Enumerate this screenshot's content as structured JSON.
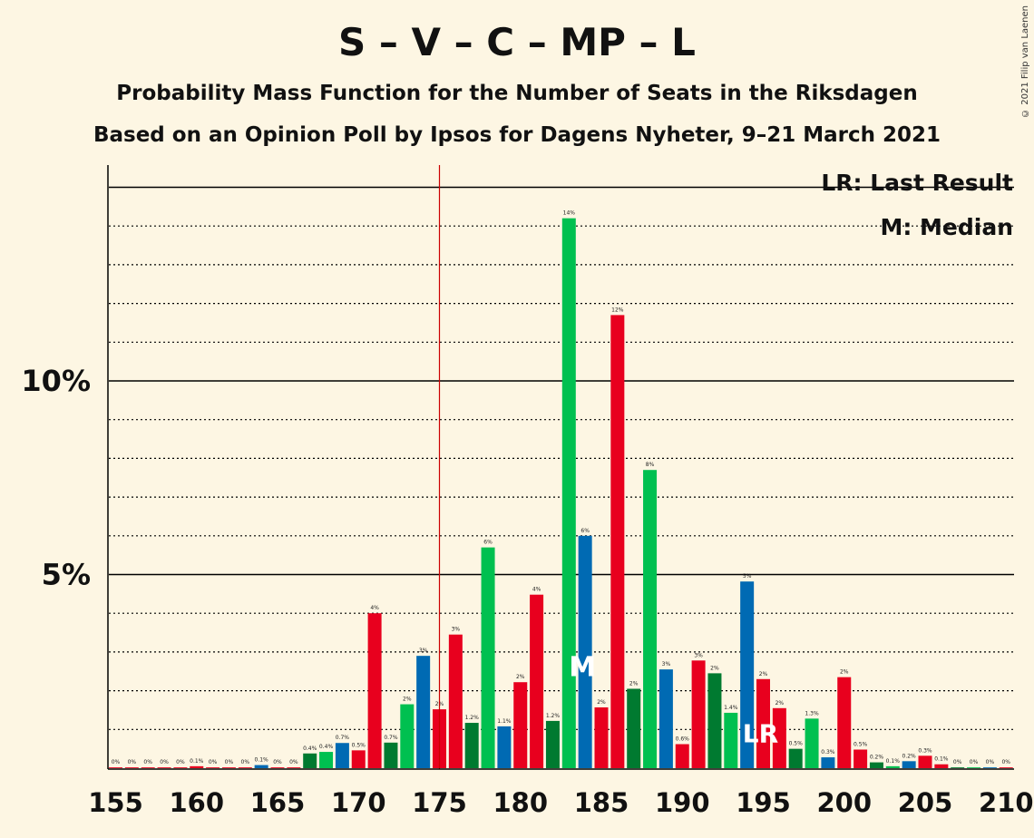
{
  "title": "S – V – C – MP – L",
  "subtitle": "Probability Mass Function for the Number of Seats in the Riksdagen",
  "subtitle2": "Based on an Opinion Poll by Ipsos for Dagens Nyheter, 9–21 March 2021",
  "copyright": "© 2021 Filip van Laenen",
  "legend": {
    "last_result": "LR: Last Result",
    "median": "M: Median"
  },
  "markers": {
    "median_label": "M",
    "last_result_label": "LR"
  },
  "colors": {
    "red": "#e8001e",
    "green": "#00c050",
    "darkgreen": "#007a30",
    "blue": "#006ab3",
    "majority_line": "#cc0000"
  },
  "chart_data": {
    "type": "bar",
    "xlim": [
      155,
      210
    ],
    "ylim": [
      0,
      15.5
    ],
    "x_ticks": [
      "155",
      "160",
      "165",
      "170",
      "175",
      "180",
      "185",
      "190",
      "195",
      "200",
      "205",
      "210"
    ],
    "y_ticks": [
      "5%",
      "10%"
    ],
    "majority_line_x": 175,
    "median_seat": 184,
    "last_result_seat": 195,
    "bars": [
      {
        "x": 155,
        "v": 0.02,
        "label": "0%",
        "c": "red"
      },
      {
        "x": 156,
        "v": 0.02,
        "label": "0%",
        "c": "red"
      },
      {
        "x": 157,
        "v": 0.02,
        "label": "0%",
        "c": "red"
      },
      {
        "x": 158,
        "v": 0.02,
        "label": "0%",
        "c": "red"
      },
      {
        "x": 159,
        "v": 0.02,
        "label": "0%",
        "c": "red"
      },
      {
        "x": 160,
        "v": 0.05,
        "label": "0.1%",
        "c": "red"
      },
      {
        "x": 161,
        "v": 0.02,
        "label": "0%",
        "c": "red"
      },
      {
        "x": 162,
        "v": 0.02,
        "label": "0%",
        "c": "red"
      },
      {
        "x": 163,
        "v": 0.02,
        "label": "0%",
        "c": "red"
      },
      {
        "x": 164,
        "v": 0.08,
        "label": "0.1%",
        "c": "blue"
      },
      {
        "x": 165,
        "v": 0.02,
        "label": "0%",
        "c": "red"
      },
      {
        "x": 166,
        "v": 0.02,
        "label": "0%",
        "c": "red"
      },
      {
        "x": 167,
        "v": 0.38,
        "label": "0.4%",
        "c": "darkgreen"
      },
      {
        "x": 168,
        "v": 0.42,
        "label": "0.4%",
        "c": "green"
      },
      {
        "x": 169,
        "v": 0.65,
        "label": "0.7%",
        "c": "blue"
      },
      {
        "x": 170,
        "v": 0.46,
        "label": "0.5%",
        "c": "red"
      },
      {
        "x": 171,
        "v": 4.0,
        "label": "4%",
        "c": "red"
      },
      {
        "x": 172,
        "v": 0.66,
        "label": "0.7%",
        "c": "darkgreen"
      },
      {
        "x": 173,
        "v": 1.65,
        "label": "2%",
        "c": "green"
      },
      {
        "x": 174,
        "v": 2.9,
        "label": "3%",
        "c": "blue"
      },
      {
        "x": 175,
        "v": 1.52,
        "label": "2%",
        "c": "red"
      },
      {
        "x": 176,
        "v": 3.45,
        "label": "3%",
        "c": "red"
      },
      {
        "x": 177,
        "v": 1.17,
        "label": "1.2%",
        "c": "darkgreen"
      },
      {
        "x": 178,
        "v": 5.7,
        "label": "6%",
        "c": "green"
      },
      {
        "x": 179,
        "v": 1.08,
        "label": "1.1%",
        "c": "blue"
      },
      {
        "x": 180,
        "v": 2.22,
        "label": "2%",
        "c": "red"
      },
      {
        "x": 181,
        "v": 4.48,
        "label": "4%",
        "c": "red"
      },
      {
        "x": 182,
        "v": 1.22,
        "label": "1.2%",
        "c": "darkgreen"
      },
      {
        "x": 183,
        "v": 14.2,
        "label": "14%",
        "c": "green"
      },
      {
        "x": 184,
        "v": 6.0,
        "label": "6%",
        "c": "blue"
      },
      {
        "x": 185,
        "v": 1.57,
        "label": "2%",
        "c": "red"
      },
      {
        "x": 186,
        "v": 11.7,
        "label": "12%",
        "c": "red"
      },
      {
        "x": 187,
        "v": 2.05,
        "label": "2%",
        "c": "darkgreen"
      },
      {
        "x": 188,
        "v": 7.7,
        "label": "8%",
        "c": "green"
      },
      {
        "x": 189,
        "v": 2.55,
        "label": "3%",
        "c": "blue"
      },
      {
        "x": 190,
        "v": 0.62,
        "label": "0.6%",
        "c": "red"
      },
      {
        "x": 191,
        "v": 2.78,
        "label": "3%",
        "c": "red"
      },
      {
        "x": 192,
        "v": 2.45,
        "label": "2%",
        "c": "darkgreen"
      },
      {
        "x": 193,
        "v": 1.43,
        "label": "1.4%",
        "c": "green"
      },
      {
        "x": 194,
        "v": 4.82,
        "label": "5%",
        "c": "blue"
      },
      {
        "x": 195,
        "v": 2.3,
        "label": "2%",
        "c": "red"
      },
      {
        "x": 196,
        "v": 1.55,
        "label": "2%",
        "c": "red"
      },
      {
        "x": 197,
        "v": 0.5,
        "label": "0.5%",
        "c": "darkgreen"
      },
      {
        "x": 198,
        "v": 1.28,
        "label": "1.3%",
        "c": "green"
      },
      {
        "x": 199,
        "v": 0.28,
        "label": "0.3%",
        "c": "blue"
      },
      {
        "x": 200,
        "v": 2.35,
        "label": "2%",
        "c": "red"
      },
      {
        "x": 201,
        "v": 0.48,
        "label": "0.5%",
        "c": "red"
      },
      {
        "x": 202,
        "v": 0.15,
        "label": "0.2%",
        "c": "darkgreen"
      },
      {
        "x": 203,
        "v": 0.05,
        "label": "0.1%",
        "c": "green"
      },
      {
        "x": 204,
        "v": 0.18,
        "label": "0.2%",
        "c": "blue"
      },
      {
        "x": 205,
        "v": 0.32,
        "label": "0.3%",
        "c": "red"
      },
      {
        "x": 206,
        "v": 0.1,
        "label": "0.1%",
        "c": "red"
      },
      {
        "x": 207,
        "v": 0.02,
        "label": "0%",
        "c": "darkgreen"
      },
      {
        "x": 208,
        "v": 0.02,
        "label": "0%",
        "c": "green"
      },
      {
        "x": 209,
        "v": 0.02,
        "label": "0%",
        "c": "blue"
      },
      {
        "x": 210,
        "v": 0.02,
        "label": "0%",
        "c": "red"
      }
    ]
  }
}
